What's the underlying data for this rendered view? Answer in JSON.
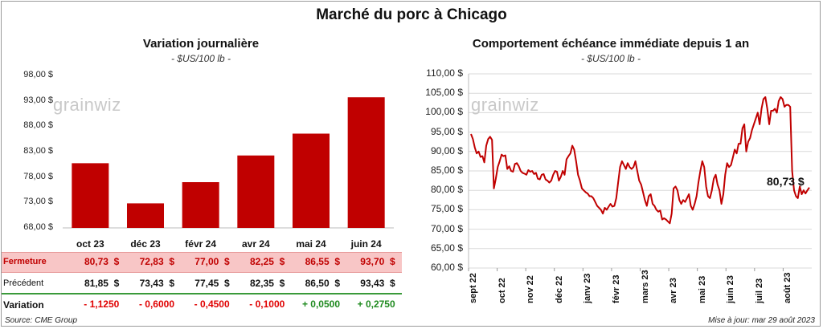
{
  "title": "Marché du porc à Chicago",
  "left": {
    "subtitle": "Variation journalière",
    "unit": "- $US/100 lb -",
    "watermark": "grainwiz"
  },
  "right": {
    "subtitle": "Comportement  échéance immédiate depuis 1 an",
    "unit": "- $US/100 lb -",
    "watermark": "grainwiz",
    "last_label": "80,73 $"
  },
  "table": {
    "row1_label": "Fermeture",
    "row2_label": "Précédent",
    "row3_label": "Variation",
    "fermeture": [
      "80,73  $",
      "72,83  $",
      "77,00  $",
      "82,25  $",
      "86,55  $",
      "93,70  $"
    ],
    "precedent": [
      "81,85  $",
      "73,43  $",
      "77,45  $",
      "82,35  $",
      "86,50  $",
      "93,43  $"
    ],
    "variation": [
      "- 1,1250",
      "- 0,6000",
      "- 0,4500",
      "- 0,1000",
      "+ 0,0500",
      "+ 0,2750"
    ]
  },
  "footer": {
    "source": "Source: CME Group",
    "updated": "Mise à jour: mar 29 août 2023"
  },
  "colors": {
    "bar": "#c00000",
    "line": "#c00000",
    "neg": "#e00000",
    "pos": "#1f8a1f"
  },
  "chart_data": [
    {
      "type": "bar",
      "title": "Variation journalière",
      "ylabel": "- $US/100 lb -",
      "categories": [
        "oct 23",
        "déc 23",
        "févr 24",
        "avr 24",
        "mai 24",
        "juin 24"
      ],
      "values": [
        80.73,
        72.83,
        77.0,
        82.25,
        86.55,
        93.7
      ],
      "ylim": [
        68,
        98
      ],
      "yticks": [
        "98,00 $",
        "93,00 $",
        "88,00 $",
        "83,00 $",
        "78,00 $",
        "73,00 $",
        "68,00 $"
      ],
      "grid": false
    },
    {
      "type": "line",
      "title": "Comportement  échéance immédiate depuis 1 an",
      "ylabel": "- $US/100 lb -",
      "ylim": [
        60,
        110
      ],
      "yticks": [
        "110,00 $",
        "105,00 $",
        "100,00 $",
        "95,00 $",
        "90,00 $",
        "85,00 $",
        "80,00 $",
        "75,00 $",
        "70,00 $",
        "65,00 $",
        "60,00 $"
      ],
      "xticks": [
        "sept 22",
        "oct 22",
        "nov 22",
        "déc 22",
        "janv 23",
        "févr 23",
        "mars 23",
        "avr 23",
        "mai 23",
        "juin 23",
        "juil 23",
        "août 23"
      ],
      "grid": true,
      "series": [
        {
          "values": [
            94.5,
            93.2,
            91.0,
            89.5,
            90.0,
            88.6,
            88.8,
            87.2,
            91.5,
            93.2,
            93.8,
            93.0,
            80.5,
            83.0,
            86.0,
            87.5,
            89.2,
            88.8,
            89.0,
            85.5,
            86.2,
            85.0,
            84.8,
            86.8,
            87.0,
            86.2,
            85.0,
            84.5,
            84.3,
            84.0,
            85.2,
            84.8,
            85.0,
            84.2,
            84.5,
            83.0,
            82.8,
            84.0,
            84.2,
            82.8,
            82.5,
            82.0,
            82.5,
            84.0,
            85.0,
            84.8,
            82.5,
            83.5,
            85.0,
            84.0,
            88.0,
            88.8,
            89.5,
            91.5,
            90.5,
            87.5,
            84.0,
            82.5,
            80.5,
            80.0,
            79.5,
            79.2,
            78.5,
            78.5,
            78.0,
            77.0,
            76.0,
            75.5,
            75.0,
            74.0,
            75.5,
            75.0,
            75.8,
            76.5,
            75.8,
            76.0,
            78.0,
            82.0,
            86.0,
            87.5,
            86.5,
            85.5,
            87.0,
            86.0,
            85.5,
            86.0,
            87.5,
            85.0,
            82.5,
            81.5,
            79.5,
            77.5,
            76.0,
            78.5,
            79.0,
            76.5,
            76.0,
            75.0,
            74.5,
            74.8,
            72.5,
            72.8,
            72.5,
            72.0,
            71.5,
            74.0,
            80.5,
            81.0,
            80.0,
            77.5,
            76.5,
            77.5,
            77.0,
            78.0,
            79.0,
            76.0,
            75.0,
            76.5,
            78.5,
            82.0,
            85.0,
            87.5,
            86.0,
            81.0,
            78.5,
            78.0,
            80.0,
            83.0,
            84.0,
            81.5,
            80.0,
            76.5,
            79.0,
            84.0,
            87.0,
            86.0,
            86.5,
            88.5,
            90.5,
            89.5,
            92.0,
            92.0,
            96.0,
            97.0,
            90.0,
            92.5,
            93.5,
            95.5,
            97.0,
            98.5,
            100.0,
            97.0,
            101.0,
            103.5,
            104.0,
            101.0,
            97.0,
            100.5,
            100.5,
            101.0,
            100.0,
            103.0,
            104.0,
            103.5,
            101.5,
            102.0,
            102.0,
            101.5,
            85.0,
            80.0,
            78.5,
            78.0,
            81.0,
            79.0,
            80.0,
            79.2,
            80.0,
            80.73
          ]
        }
      ]
    }
  ]
}
